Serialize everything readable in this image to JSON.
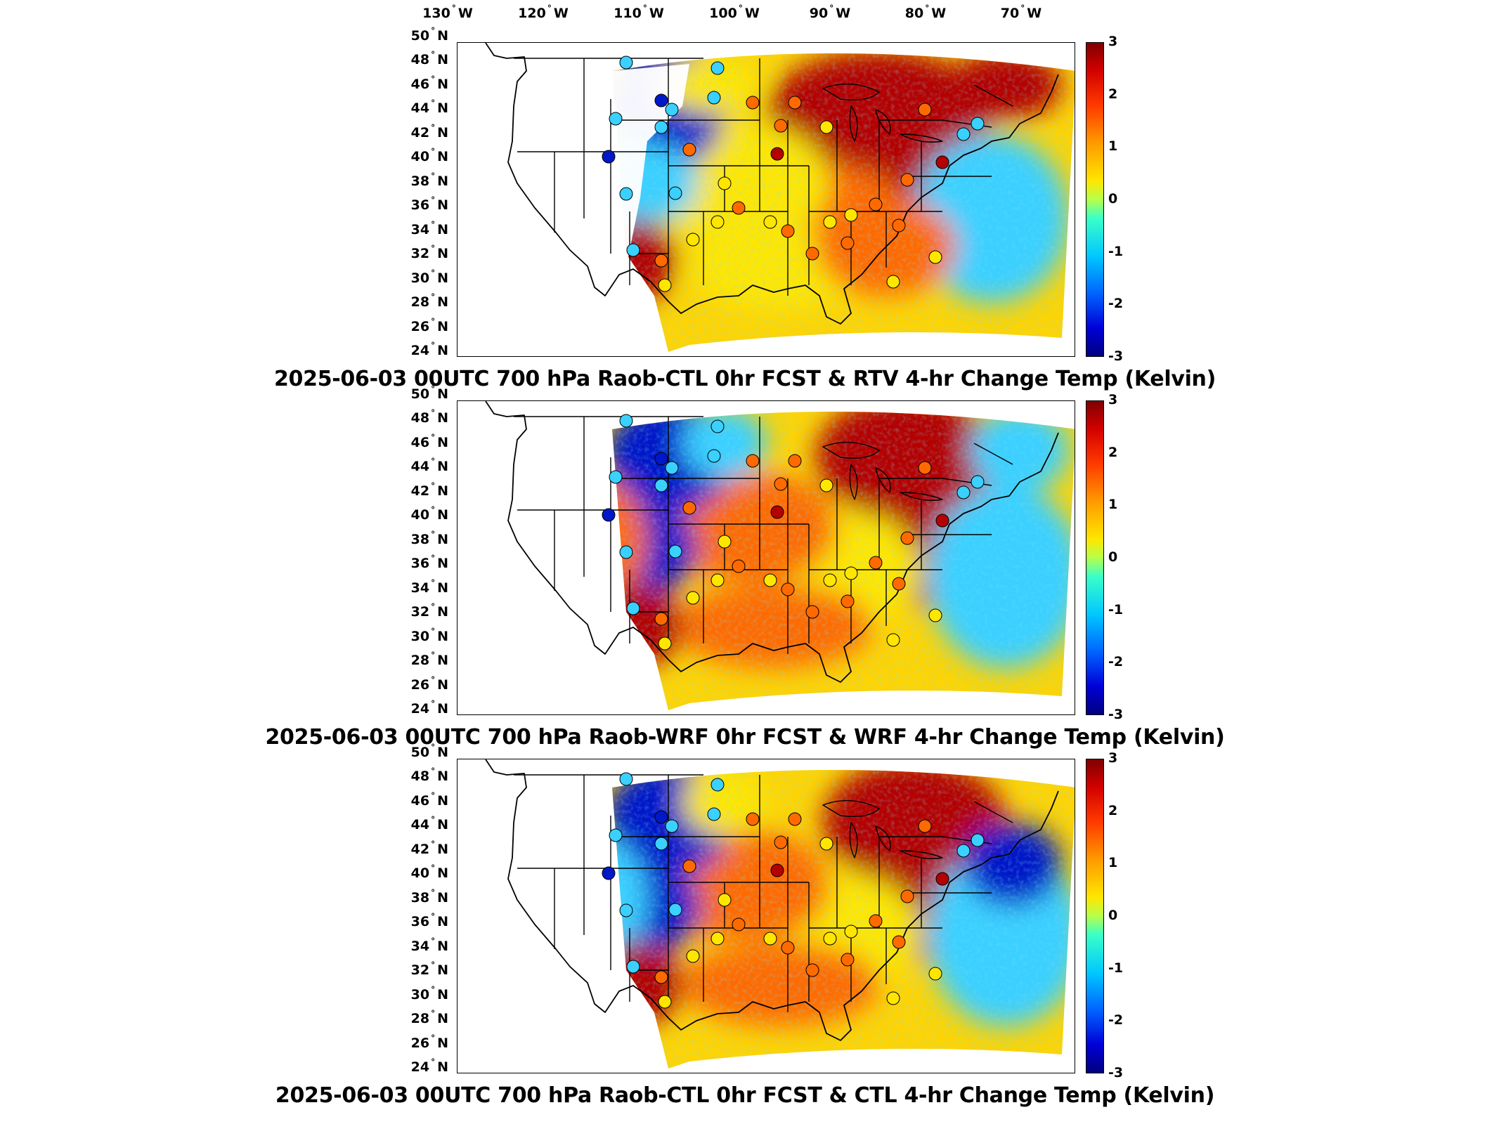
{
  "lon_axis": {
    "labels": [
      "130",
      "120",
      "110",
      "100",
      "90",
      "80",
      "70"
    ],
    "hemisphere": "W"
  },
  "lat_axis": {
    "labels": [
      "50",
      "48",
      "46",
      "44",
      "42",
      "40",
      "38",
      "36",
      "34",
      "32",
      "30",
      "28",
      "26",
      "24"
    ],
    "hemisphere": "N"
  },
  "colorbar": {
    "ticks": [
      "3",
      "2",
      "1",
      "0",
      "-1",
      "-2",
      "-3"
    ],
    "range": [
      -3,
      3
    ],
    "colormap": "jet"
  },
  "panels": [
    {
      "id": "rtv",
      "title": "2025-06-03 00UTC 700 hPa Raob-CTL 0hr FCST & RTV 4-hr Change Temp (Kelvin)"
    },
    {
      "id": "wrf",
      "title": "2025-06-03 00UTC 700 hPa Raob-WRF 0hr FCST & WRF 4-hr Change Temp (Kelvin)"
    },
    {
      "id": "ctl",
      "title": "2025-06-03 00UTC 700 hPa Raob-CTL 0hr FCST & CTL 4-hr Change Temp (Kelvin)"
    }
  ],
  "colors": {
    "hot": "#b40000",
    "warm": "#ff6a00",
    "neutral": "#ffe600",
    "cool": "#3ad0ff",
    "cold": "#0018c8"
  }
}
